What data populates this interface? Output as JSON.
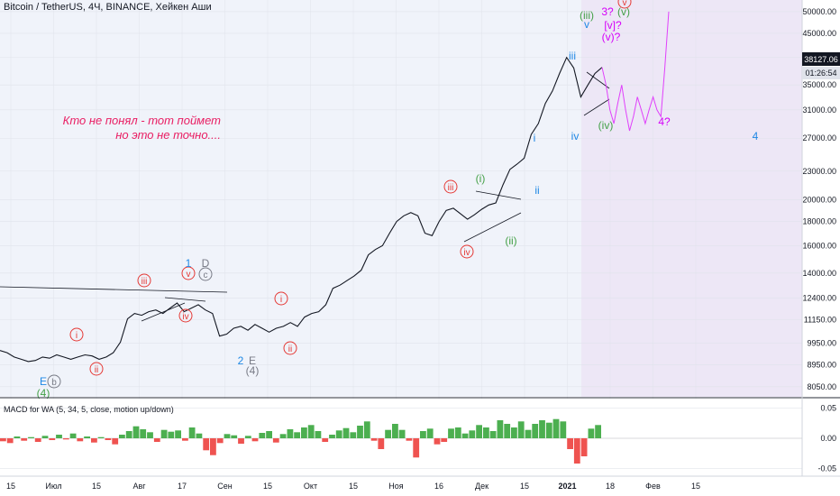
{
  "header": {
    "title": "Bitcoin / TetherUS, 4Ч, BINANCE, Хейкен Аши"
  },
  "price_axis": {
    "current_price": "38127.06",
    "countdown": "01:26:54"
  },
  "annotation": {
    "line1": "Кто не понял - тот поймет",
    "line2": "но это не точно...."
  },
  "macd": {
    "label": "MACD for WA (5, 34, 5, close, motion up/down)"
  },
  "colors": {
    "price_line": "#131722",
    "projection": "#e040fb",
    "forecast_zone": "#ede7f6",
    "wave_red": "#e53935",
    "wave_green": "#43a047",
    "wave_blue": "#1e88e5",
    "wave_gray": "#787b86",
    "wave_magenta": "#d500f9",
    "macd_up": "#4caf50",
    "macd_down": "#ef5350",
    "current_label_bg": "#131722"
  },
  "wave_labels": [
    {
      "text": "E",
      "color": "blue"
    },
    {
      "text": "(4)",
      "color": "green"
    },
    {
      "text": "b",
      "color": "gray"
    },
    {
      "text": "i",
      "color": "red"
    },
    {
      "text": "ii",
      "color": "red"
    },
    {
      "text": "iii",
      "color": "red"
    },
    {
      "text": "iv",
      "color": "red"
    },
    {
      "text": "v",
      "color": "red"
    },
    {
      "text": "1",
      "color": "blue"
    },
    {
      "text": "D",
      "color": "gray"
    },
    {
      "text": "c",
      "color": "gray"
    },
    {
      "text": "2",
      "color": "blue"
    },
    {
      "text": "E",
      "color": "gray"
    },
    {
      "text": "(4)",
      "color": "gray"
    },
    {
      "text": "i",
      "color": "red"
    },
    {
      "text": "ii",
      "color": "red"
    },
    {
      "text": "iii",
      "color": "red"
    },
    {
      "text": "iv",
      "color": "red"
    },
    {
      "text": "(i)",
      "color": "green"
    },
    {
      "text": "(ii)",
      "color": "green"
    },
    {
      "text": "i",
      "color": "blue"
    },
    {
      "text": "ii",
      "color": "blue"
    },
    {
      "text": "iii",
      "color": "blue"
    },
    {
      "text": "iv",
      "color": "blue"
    },
    {
      "text": "(iii)",
      "color": "green"
    },
    {
      "text": "v",
      "color": "blue"
    },
    {
      "text": "3?",
      "color": "magenta"
    },
    {
      "text": "[v]?",
      "color": "magenta"
    },
    {
      "text": "(v)?",
      "color": "magenta"
    },
    {
      "text": "(iv)",
      "color": "green"
    },
    {
      "text": "(v)",
      "color": "green"
    },
    {
      "text": "v",
      "color": "red"
    },
    {
      "text": "4?",
      "color": "magenta"
    },
    {
      "text": "4",
      "color": "blue"
    }
  ],
  "chart_data": {
    "type": "line",
    "title": "Bitcoin / TetherUS, 4Ч, BINANCE, Хейкен Аши",
    "y_scale": "log",
    "ylim": [
      7800,
      52000
    ],
    "y_ticks": [
      8050,
      8950,
      9950,
      11150,
      12400,
      14000,
      16000,
      18000,
      20000,
      23000,
      27000,
      31000,
      35000,
      40000,
      45000,
      50000
    ],
    "y_tick_labels": [
      "8050.00",
      "8950.00",
      "9950.00",
      "11150.00",
      "12400.00",
      "14000.00",
      "16000.00",
      "18000.00",
      "20000.00",
      "23000.00",
      "27000.00",
      "31000.00",
      "35000.00",
      "40000.00",
      "45000.00",
      "50000.00"
    ],
    "x_ticks": [
      "15",
      "Июл",
      "15",
      "Авг",
      "17",
      "Сен",
      "15",
      "Окт",
      "15",
      "Ноя",
      "16",
      "Дек",
      "15",
      "2021",
      "18",
      "Фев",
      "15"
    ],
    "x_ticks_bold": [
      "2021"
    ],
    "series": [
      {
        "values": [
          9600,
          9500,
          9300,
          9200,
          9100,
          9150,
          9300,
          9250,
          9400,
          9300,
          9200,
          9300,
          9400,
          9350,
          9200,
          9300,
          9500,
          10000,
          11200,
          11500,
          11400,
          11600,
          11700,
          11500,
          11800,
          12100,
          11600,
          11800,
          12000,
          11700,
          11500,
          10300,
          10400,
          10700,
          10800,
          10600,
          10900,
          10700,
          10500,
          10700,
          10800,
          11000,
          10800,
          11300,
          11500,
          11600,
          12000,
          13000,
          13200,
          13500,
          13800,
          14200,
          15300,
          15700,
          16000,
          17000,
          18000,
          18500,
          18800,
          18500,
          17000,
          16800,
          18000,
          19000,
          19200,
          18700,
          18200,
          18600,
          19100,
          19500,
          19700,
          21500,
          23200,
          23800,
          24500,
          27500,
          29000,
          32000,
          34000,
          37000,
          40000,
          38000,
          33000,
          35000,
          37000,
          38127
        ]
      }
    ],
    "projection": {
      "values": [
        38127,
        35000,
        31000,
        29000,
        32000,
        35000,
        31000,
        28000,
        30000,
        33000,
        31000,
        29000,
        31000,
        33000,
        31000,
        30000,
        38000,
        50000
      ]
    },
    "macd": {
      "type": "histogram",
      "ylim": [
        -0.06,
        0.06
      ],
      "y_tick_labels": [
        "0.05",
        "0.00",
        "-0.05"
      ],
      "values": [
        -0.005,
        -0.008,
        0.003,
        -0.004,
        0.002,
        -0.006,
        0.004,
        -0.003,
        0.006,
        -0.002,
        0.008,
        -0.005,
        0.003,
        -0.007,
        0.002,
        -0.003,
        -0.01,
        0.006,
        0.012,
        0.02,
        0.015,
        0.01,
        -0.006,
        0.014,
        0.011,
        0.013,
        -0.004,
        0.018,
        0.008,
        -0.02,
        -0.028,
        -0.008,
        0.007,
        0.005,
        -0.009,
        0.004,
        -0.005,
        0.009,
        0.012,
        -0.007,
        0.007,
        0.015,
        0.01,
        0.018,
        0.022,
        0.012,
        -0.006,
        0.006,
        0.013,
        0.017,
        0.01,
        0.021,
        0.028,
        -0.004,
        -0.018,
        0.014,
        0.024,
        0.014,
        -0.004,
        -0.032,
        0.012,
        0.016,
        -0.01,
        -0.006,
        0.016,
        0.018,
        0.008,
        0.013,
        0.022,
        0.018,
        0.012,
        0.03,
        0.024,
        0.018,
        0.028,
        0.014,
        0.024,
        0.03,
        0.026,
        0.032,
        0.028,
        -0.018,
        -0.042,
        -0.03,
        0.016,
        0.022
      ]
    }
  }
}
